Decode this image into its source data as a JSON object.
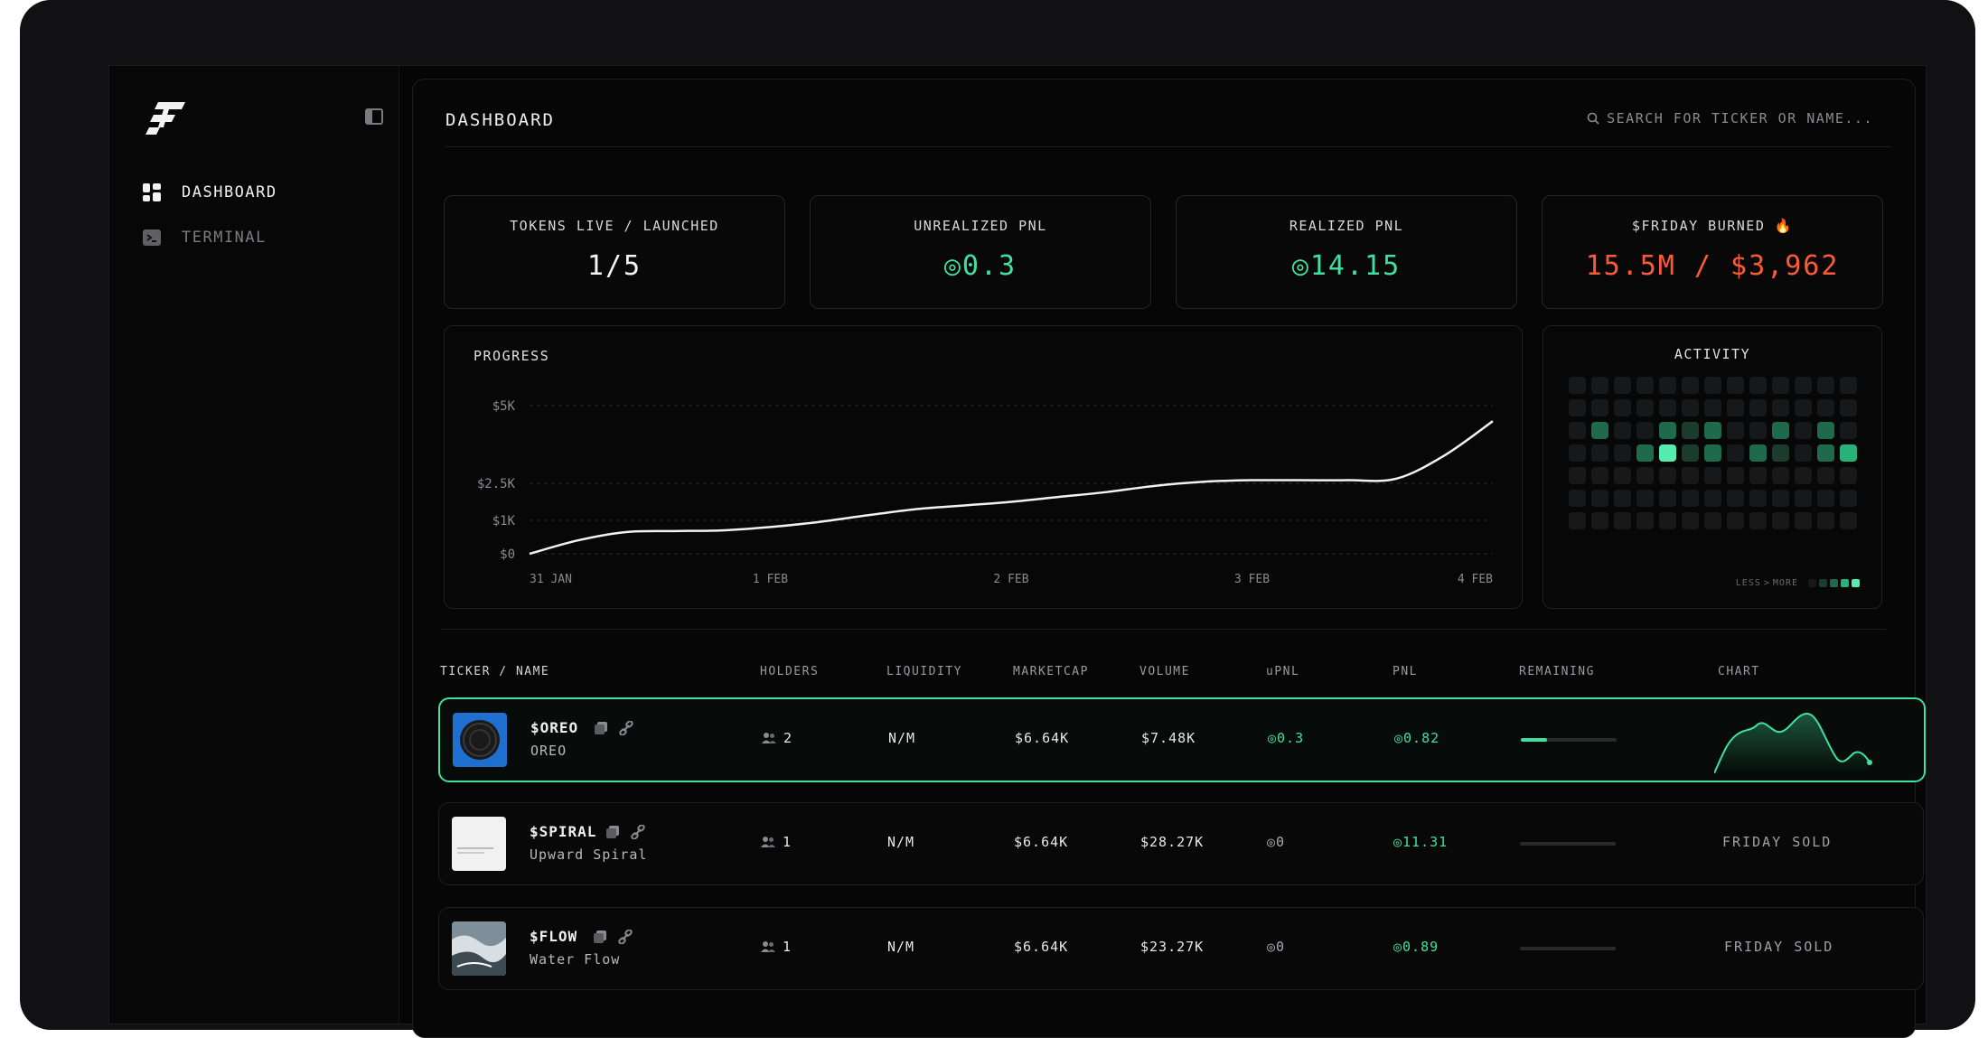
{
  "sidebar": {
    "items": [
      {
        "label": "DASHBOARD",
        "active": true
      },
      {
        "label": "TERMINAL",
        "active": false
      }
    ]
  },
  "header": {
    "title": "DASHBOARD",
    "search_placeholder": "SEARCH FOR TICKER OR NAME..."
  },
  "stats": [
    {
      "label": "TOKENS LIVE / LAUNCHED",
      "value": "1/5"
    },
    {
      "label": "UNREALIZED PNL",
      "value": "◎0.3"
    },
    {
      "label": "REALIZED PNL",
      "value": "◎14.15"
    },
    {
      "label": "$FRIDAY BURNED 🔥",
      "value": "15.5M / $3,962"
    }
  ],
  "progress": {
    "title": "PROGRESS"
  },
  "chart_data": {
    "type": "line",
    "title": "PROGRESS",
    "x_ticks": [
      "31 JAN",
      "1 FEB",
      "2 FEB",
      "3 FEB",
      "4 FEB"
    ],
    "y_ticks": [
      "$0",
      "$1K",
      "$2.5K",
      "$5K"
    ],
    "x": [
      0,
      0.2,
      0.4,
      0.6,
      0.8,
      1.0,
      1.2,
      1.4,
      1.6,
      1.8,
      2.0,
      2.2,
      2.4,
      2.6,
      2.8,
      3.0,
      3.2,
      3.4,
      3.6,
      3.8,
      4.0
    ],
    "values": [
      0,
      400,
      650,
      680,
      700,
      800,
      950,
      1200,
      1450,
      1600,
      1750,
      1950,
      2150,
      2400,
      2550,
      2600,
      2600,
      2600,
      2650,
      3400,
      4500
    ],
    "grid": true
  },
  "activity": {
    "title": "ACTIVITY",
    "legend_less": "LESS",
    "legend_more": "MORE",
    "levels": [
      [
        0,
        0,
        0,
        0,
        0,
        0,
        0,
        0,
        0,
        0,
        0,
        0,
        0
      ],
      [
        0,
        0,
        0,
        0,
        0,
        0,
        0,
        0,
        0,
        0,
        0,
        0,
        0
      ],
      [
        0,
        2,
        0,
        0,
        2,
        1,
        2,
        0,
        0,
        2,
        0,
        2,
        0
      ],
      [
        0,
        0,
        0,
        2,
        4,
        1,
        2,
        0,
        2,
        1,
        0,
        2,
        3
      ],
      [
        0,
        0,
        0,
        0,
        0,
        0,
        0,
        0,
        0,
        0,
        0,
        0,
        0
      ],
      [
        0,
        0,
        0,
        0,
        0,
        0,
        0,
        0,
        0,
        0,
        0,
        0,
        0
      ],
      [
        0,
        0,
        0,
        0,
        0,
        0,
        0,
        0,
        0,
        0,
        0,
        0,
        0
      ]
    ],
    "colors": [
      "#16181a",
      "#1a3b2e",
      "#1f6a4c",
      "#27b27a",
      "#56ecb0"
    ]
  },
  "table": {
    "headers": [
      "TICKER / NAME",
      "HOLDERS",
      "LIQUIDITY",
      "MARKETCAP",
      "VOLUME",
      "uPNL",
      "PNL",
      "REMAINING",
      "CHART"
    ],
    "rows": [
      {
        "ticker": "$OREO",
        "name": "OREO",
        "holders": "2",
        "liquidity": "N/M",
        "marketcap": "$6.64K",
        "volume": "$7.48K",
        "upnl": "◎0.3",
        "pnl": "◎0.82",
        "remaining": 0.27,
        "status": "",
        "selected": true
      },
      {
        "ticker": "$SPIRAL",
        "name": "Upward Spiral",
        "holders": "1",
        "liquidity": "N/M",
        "marketcap": "$6.64K",
        "volume": "$28.27K",
        "upnl": "◎0",
        "pnl": "◎11.31",
        "remaining": 0,
        "status": "FRIDAY SOLD",
        "selected": false
      },
      {
        "ticker": "$FLOW",
        "name": "Water Flow",
        "holders": "1",
        "liquidity": "N/M",
        "marketcap": "$6.64K",
        "volume": "$23.27K",
        "upnl": "◎0",
        "pnl": "◎0.89",
        "remaining": 0,
        "status": "FRIDAY SOLD",
        "selected": false
      }
    ]
  },
  "colors": {
    "accent": "#3fe0a0",
    "burn": "#ff5a36",
    "bg": "#050505"
  }
}
